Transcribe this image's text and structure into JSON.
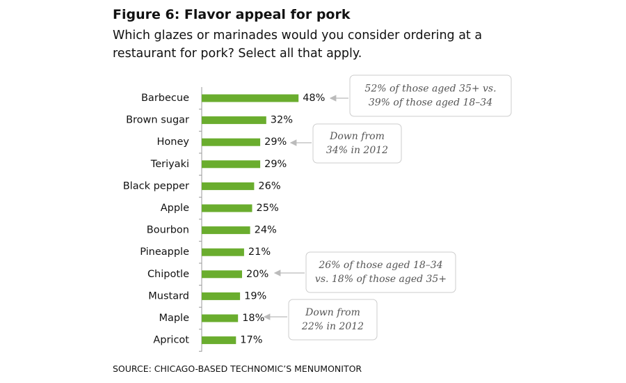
{
  "chart_data": {
    "type": "hbar",
    "title": "Figure 6: Flavor appeal for pork",
    "subtitle": "Which glazes or marinades would you consider ordering at a restaurant for pork? Select all that apply.",
    "categories": [
      "Barbecue",
      "Brown sugar",
      "Honey",
      "Teriyaki",
      "Black pepper",
      "Apple",
      "Bourbon",
      "Pineapple",
      "Chipotle",
      "Mustard",
      "Maple",
      "Apricot"
    ],
    "values": [
      48,
      32,
      29,
      29,
      26,
      25,
      24,
      21,
      20,
      19,
      18,
      17
    ],
    "value_labels": [
      "48%",
      "32%",
      "29%",
      "29%",
      "26%",
      "25%",
      "24%",
      "21%",
      "20%",
      "19%",
      "18%",
      "17%"
    ],
    "color": "#6aad2e",
    "annotations": [
      {
        "lines": [
          "52% of those aged 35+ vs.",
          "39% of those aged 18–34"
        ]
      },
      {
        "lines": [
          "Down from",
          "34% in 2012"
        ]
      },
      {
        "lines": [
          "26% of those aged 18–34",
          "vs. 18% of those aged 35+"
        ]
      },
      {
        "lines": [
          "Down from",
          "22% in 2012"
        ]
      }
    ],
    "source": "SOURCE: CHICAGO-BASED TECHNOMIC’S MENUMONITOR"
  }
}
